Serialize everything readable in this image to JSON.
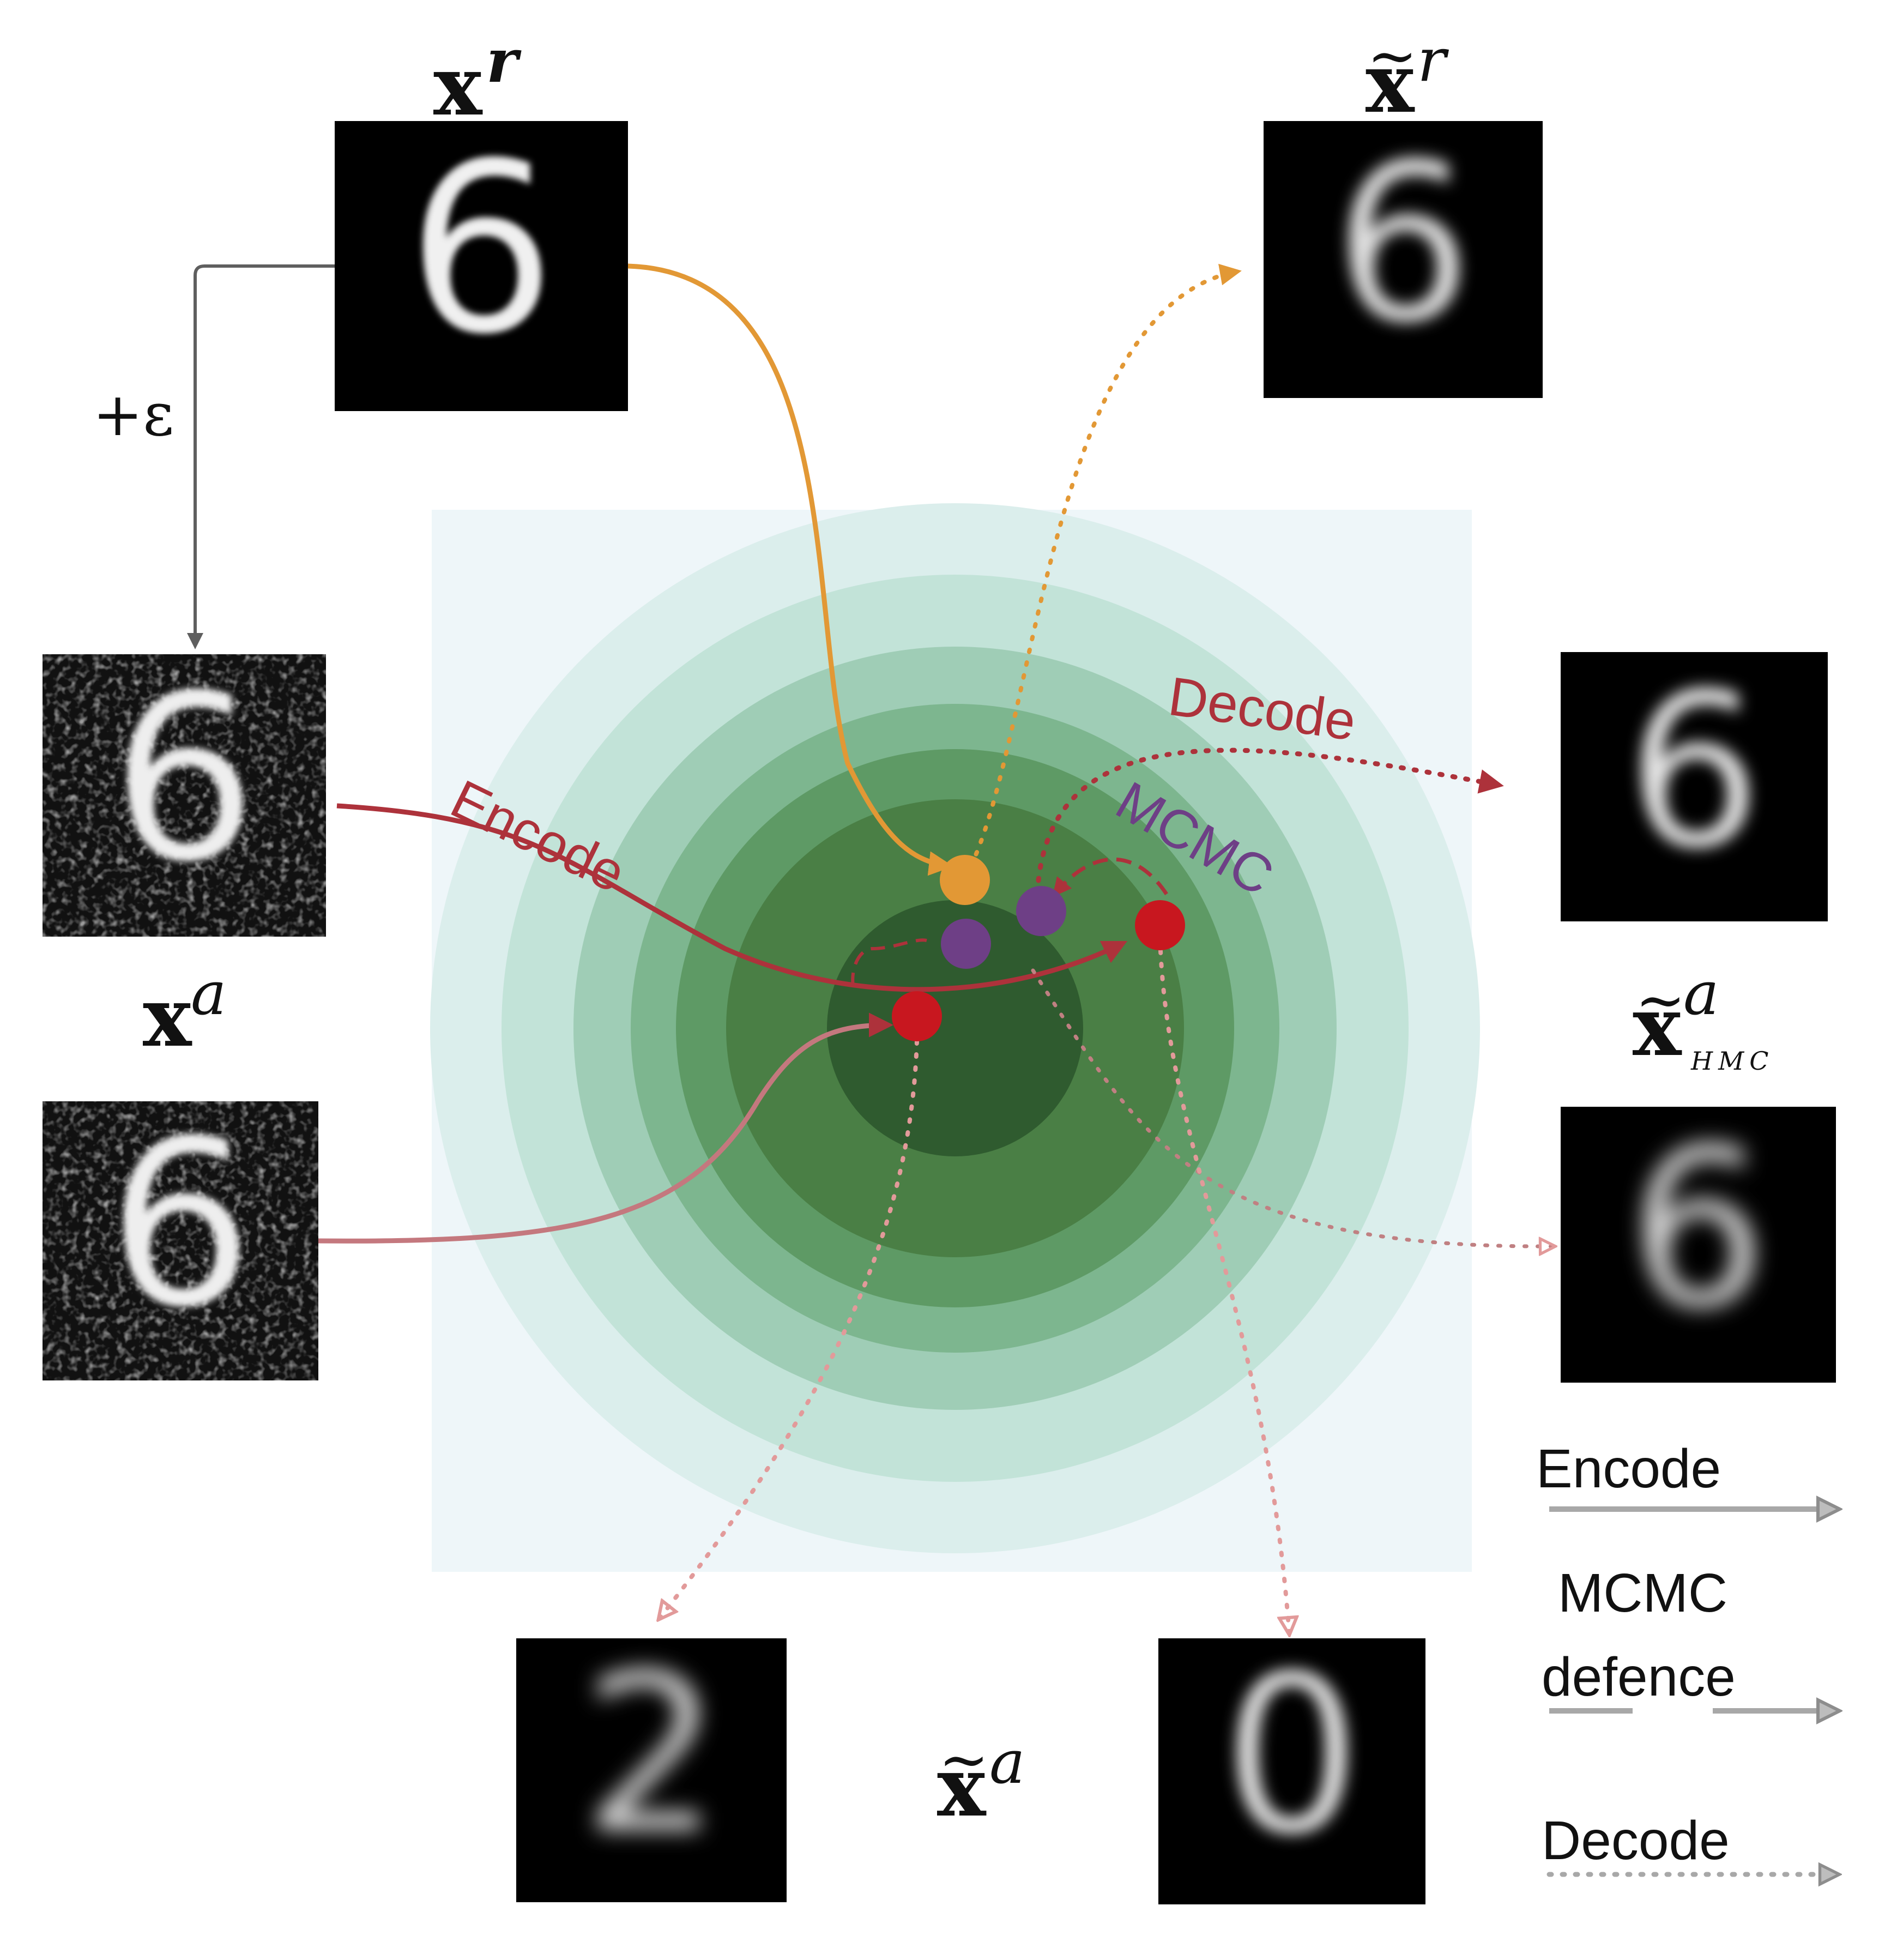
{
  "labels": {
    "x_r": "x",
    "x_r_sup": "r",
    "x_r_tilde": "x",
    "x_r_tilde_sup": "r",
    "x_a": "x",
    "x_a_sup": "a",
    "x_a_hmc": "x",
    "x_a_hmc_sup": "a",
    "x_a_hmc_sub": "HMC",
    "x_a_tilde": "x",
    "x_a_tilde_sup": "a",
    "perturbation": "+ε",
    "path_encode": "Encode",
    "path_decode": "Decode",
    "path_mcmc": "MCMC"
  },
  "legend": {
    "encode": "Encode",
    "mcmc_line1": "MCMC",
    "mcmc_line2": "defence",
    "decode": "Decode"
  },
  "digits": {
    "x_r": "6",
    "x_a_top": "6",
    "x_a_bottom": "6",
    "recon_r": "6",
    "recon_hmc_top": "6",
    "recon_hmc_bottom": "6",
    "recon_adv_left": "2",
    "recon_adv_right": "0"
  },
  "colors": {
    "orange": "#e29835",
    "red": "#c8171f",
    "dark_red": "#ad323b",
    "purple": "#6e3f86",
    "light_red": "#e29a9a",
    "grey": "#5f5f5f",
    "legend_grey": "#a8a8a8"
  }
}
